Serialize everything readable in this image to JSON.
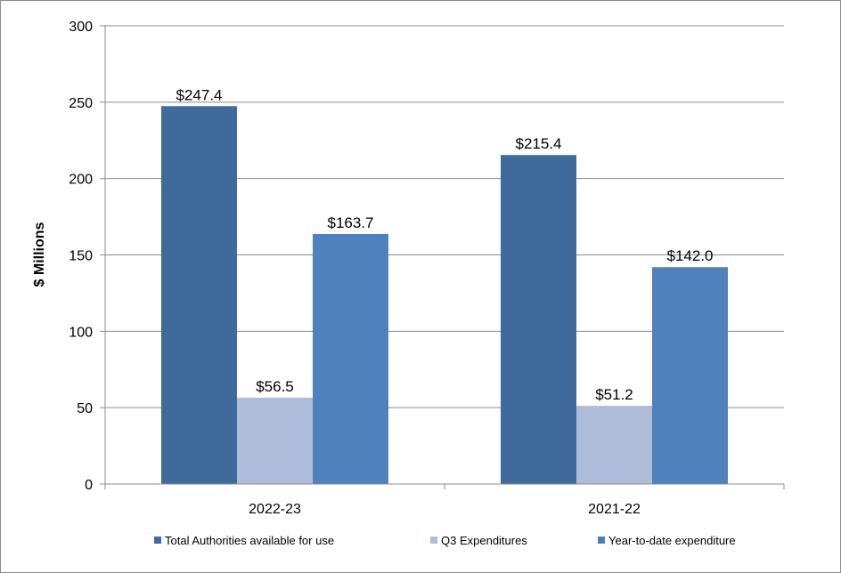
{
  "chart_data": {
    "type": "bar",
    "title": "",
    "xlabel": "",
    "ylabel": "$ Millions",
    "ylim": [
      0,
      300
    ],
    "yticks": [
      0,
      50,
      100,
      150,
      200,
      250,
      300
    ],
    "categories": [
      "2022-23",
      "2021-22"
    ],
    "series": [
      {
        "name": "Total Authorities available for use",
        "values": [
          247.4,
          215.4
        ],
        "labels": [
          "$247.4",
          "$215.4"
        ],
        "color": "#3e6b9c"
      },
      {
        "name": "Q3 Expenditures",
        "values": [
          56.5,
          51.2
        ],
        "labels": [
          "$56.5",
          "$51.2"
        ],
        "color": "#aebcd9"
      },
      {
        "name": "Year-to-date expenditure",
        "values": [
          163.7,
          142.0
        ],
        "labels": [
          "$163.7",
          "$142.0"
        ],
        "color": "#4f81bd"
      }
    ],
    "grid": true,
    "legend_position": "bottom"
  }
}
